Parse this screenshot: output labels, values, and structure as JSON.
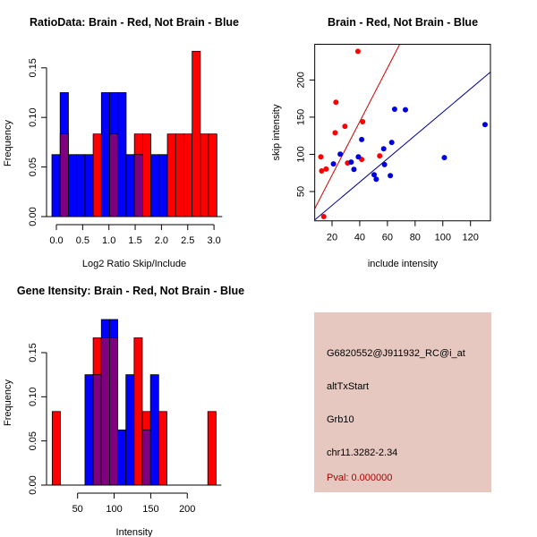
{
  "chart_data": [
    {
      "type": "bar",
      "title": "RatioData: Brain - Red, Not Brain - Blue",
      "xlabel": "Log2 Ratio Skip/Include",
      "ylabel": "Frequency",
      "bin_start": -0.085,
      "bin_width": 0.157,
      "xticks": [
        "0.0",
        "0.5",
        "1.0",
        "1.5",
        "2.0",
        "2.5",
        "3.0"
      ],
      "xtick_values": [
        0,
        0.5,
        1,
        1.5,
        2,
        2.5,
        3
      ],
      "yticks": [
        "0.00",
        "0.05",
        "0.10",
        "0.15"
      ],
      "ytick_values": [
        0,
        0.05,
        0.1,
        0.15
      ],
      "series": [
        {
          "name": "Not Brain",
          "color": "#0000FF",
          "values": [
            0.0625,
            0.125,
            0.0625,
            0.0625,
            0.0625,
            0,
            0.125,
            0.125,
            0.125,
            0.0625,
            0.0625,
            0,
            0.0625,
            0.0625,
            0,
            0,
            0,
            0,
            0,
            0
          ]
        },
        {
          "name": "Brain",
          "color": "#FF0000",
          "values": [
            0,
            0.0833,
            0,
            0,
            0,
            0.0833,
            0,
            0.0833,
            0,
            0,
            0.0833,
            0.0833,
            0,
            0,
            0.0833,
            0.0833,
            0.0833,
            0.1667,
            0.0833,
            0.0833
          ]
        }
      ],
      "overlap_color": "#7F007F"
    },
    {
      "type": "scatter",
      "title": "Brain - Red, Not Brain - Blue",
      "xlabel": "include intensity",
      "ylabel": "skip intensity",
      "xlim": [
        7.5,
        134.4
      ],
      "ylim": [
        10.6,
        248
      ],
      "xticks": [
        "20",
        "40",
        "60",
        "80",
        "100",
        "120"
      ],
      "xtick_values": [
        20,
        40,
        60,
        80,
        100,
        120
      ],
      "yticks": [
        "50",
        "100",
        "150",
        "200"
      ],
      "ytick_values": [
        50,
        100,
        150,
        200
      ],
      "series": [
        {
          "name": "Brain",
          "color": "#FF0000",
          "line_color": "#CC0000",
          "slope": 3.6,
          "points": [
            [
              38.7,
              238.5
            ],
            [
              22.8,
              170
            ],
            [
              22.2,
              129
            ],
            [
              29.3,
              137.7
            ],
            [
              42.1,
              143.9
            ],
            [
              11.9,
              96.6
            ],
            [
              12.5,
              77.7
            ],
            [
              15.7,
              80.2
            ],
            [
              31.2,
              88.3
            ],
            [
              41.4,
              93.1
            ],
            [
              54.4,
              98
            ],
            [
              14.0,
              16.3
            ]
          ]
        },
        {
          "name": "Not Brain",
          "color": "#0000DD",
          "line_color": "#00008B",
          "slope": 1.567,
          "points": [
            [
              65.2,
              160.7
            ],
            [
              73,
              159.9
            ],
            [
              130.5,
              140
            ],
            [
              41.4,
              120
            ],
            [
              63.1,
              116
            ],
            [
              25.9,
              100.3
            ],
            [
              57.3,
              107.5
            ],
            [
              21.0,
              87.1
            ],
            [
              33.8,
              89.5
            ],
            [
              39.0,
              96.6
            ],
            [
              35.8,
              79.8
            ],
            [
              57.9,
              86.3
            ],
            [
              101.1,
              95.6
            ],
            [
              50.4,
              72.6
            ],
            [
              51.9,
              66.6
            ],
            [
              62.1,
              71.4
            ]
          ]
        }
      ]
    },
    {
      "type": "bar",
      "title": "Gene Itensity: Brain - Red, Not Brain - Blue",
      "xlabel": "Intensity",
      "ylabel": "Frequency",
      "bin_start": 15.3,
      "bin_width": 11.2,
      "xticks": [
        "50",
        "100",
        "150",
        "200"
      ],
      "xtick_values": [
        50,
        100,
        150,
        200
      ],
      "yticks": [
        "0.00",
        "0.05",
        "0.10",
        "0.15"
      ],
      "ytick_values": [
        0,
        0.05,
        0.1,
        0.15
      ],
      "series": [
        {
          "name": "Not Brain",
          "color": "#0000FF",
          "values": [
            0,
            0,
            0,
            0,
            0.125,
            0.125,
            0.1875,
            0.1875,
            0.0625,
            0.125,
            0,
            0.0625,
            0.125,
            0,
            0,
            0,
            0,
            0,
            0,
            0
          ]
        },
        {
          "name": "Brain",
          "color": "#FF0000",
          "values": [
            0.0833,
            0,
            0,
            0,
            0,
            0.1667,
            0.1667,
            0.1667,
            0,
            0,
            0.1667,
            0.0833,
            0,
            0.0833,
            0,
            0,
            0,
            0,
            0,
            0.0833
          ]
        }
      ],
      "overlap_color": "#7F007F"
    }
  ],
  "info_panel": {
    "background": "#E6C8C0",
    "probe": "G6820552@J911932_RC@i_at",
    "event": "altTxStart",
    "gene": "Grb10",
    "location": "chr11.3282-2.34",
    "pval": "Pval: 0.000000",
    "pval_color": "#AA0000"
  }
}
